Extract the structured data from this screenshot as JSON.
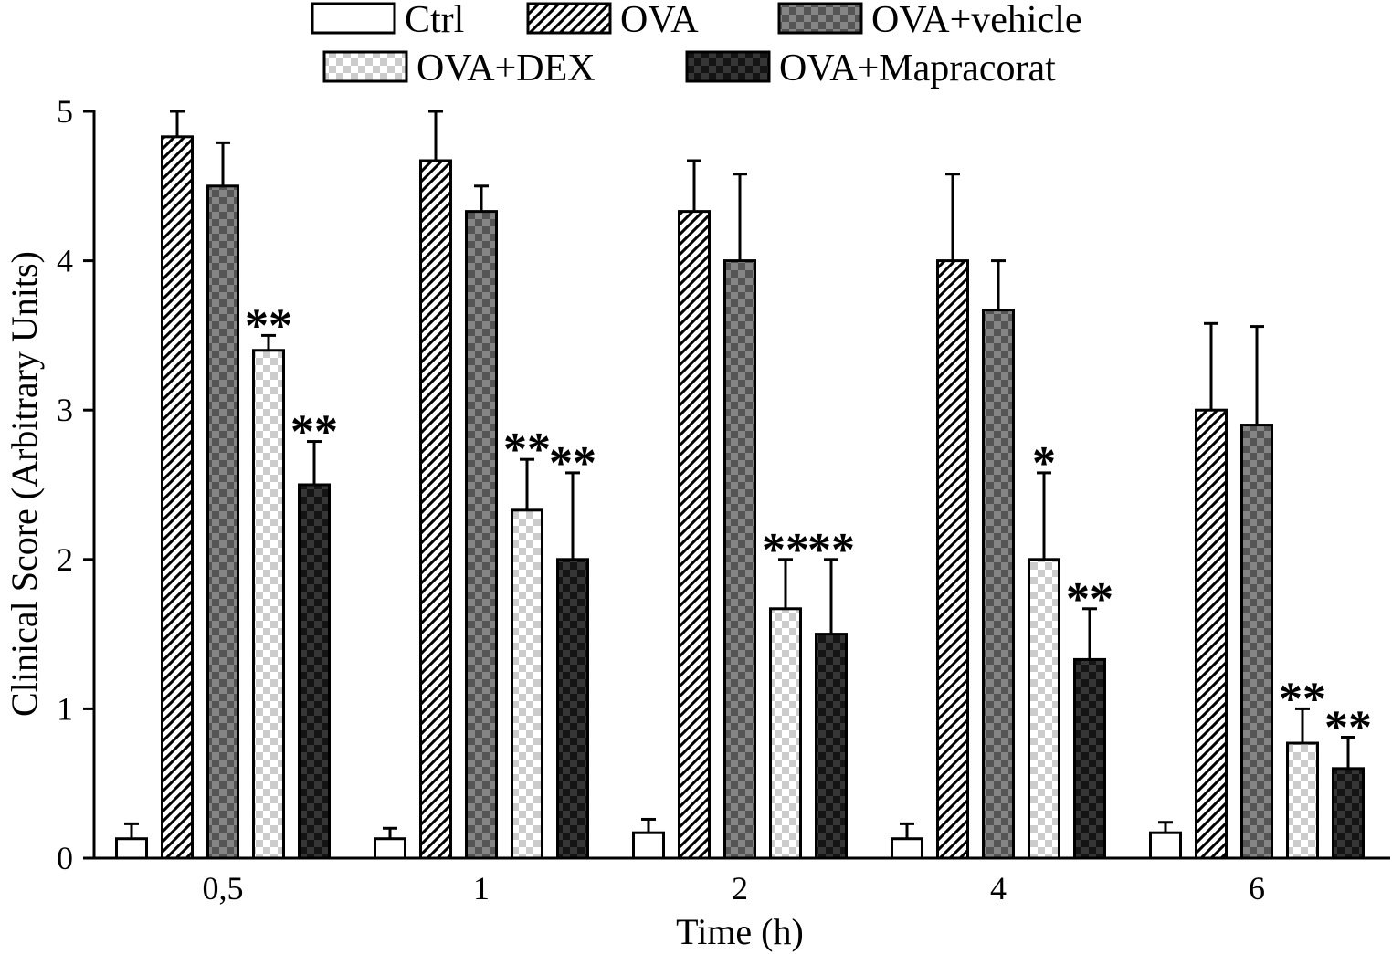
{
  "chart_data": {
    "type": "bar",
    "title": "",
    "xlabel": "Time (h)",
    "ylabel": "Clinical Score (Arbitrary Units)",
    "ylim": [
      0,
      5
    ],
    "yticks": [
      0,
      1,
      2,
      3,
      4,
      5
    ],
    "grid": false,
    "legend_position": "top-center",
    "categories": [
      "0,5",
      "1",
      "2",
      "4",
      "6"
    ],
    "series": [
      {
        "name": "Ctrl",
        "pattern": "empty",
        "colors": [
          "#ffffff",
          "#ffffff"
        ],
        "values": [
          0.13,
          0.13,
          0.17,
          0.13,
          0.17
        ],
        "errors": [
          0.1,
          0.07,
          0.09,
          0.1,
          0.07
        ],
        "significance": [
          "",
          "",
          "",
          "",
          ""
        ]
      },
      {
        "name": "OVA",
        "pattern": "hatch",
        "colors": [
          "#ffffff",
          "#000000"
        ],
        "values": [
          4.83,
          4.67,
          4.33,
          4.0,
          3.0
        ],
        "errors": [
          0.17,
          0.33,
          0.34,
          0.58,
          0.58
        ],
        "significance": [
          "",
          "",
          "",
          "",
          ""
        ]
      },
      {
        "name": "OVA+vehicle",
        "pattern": "checker",
        "colors": [
          "#555555",
          "#858585"
        ],
        "values": [
          4.5,
          4.33,
          4.0,
          3.67,
          2.9
        ],
        "errors": [
          0.29,
          0.17,
          0.58,
          0.33,
          0.66
        ],
        "significance": [
          "",
          "",
          "",
          "",
          ""
        ]
      },
      {
        "name": "OVA+DEX",
        "pattern": "checker",
        "colors": [
          "#ffffff",
          "#cccccc"
        ],
        "values": [
          3.4,
          2.33,
          1.67,
          2.0,
          0.77
        ],
        "errors": [
          0.1,
          0.34,
          0.33,
          0.58,
          0.23
        ],
        "significance": [
          "**",
          "**",
          "**",
          "*",
          "**"
        ]
      },
      {
        "name": "OVA+Mapracorat",
        "pattern": "checker",
        "colors": [
          "#141414",
          "#363636"
        ],
        "values": [
          2.5,
          2.0,
          1.5,
          1.33,
          0.6
        ],
        "errors": [
          0.29,
          0.58,
          0.5,
          0.34,
          0.21
        ],
        "significance": [
          "**",
          "**",
          "**",
          "**",
          "**"
        ]
      }
    ]
  }
}
